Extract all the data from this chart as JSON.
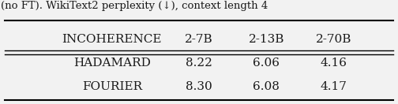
{
  "caption": "(no FT). WikiText2 perplexity (↓), context length 4",
  "col_headers": [
    "INCOHERENCE",
    "2-7B",
    "2-13B",
    "2-70B"
  ],
  "rows": [
    [
      "HADAMARD",
      "8.22",
      "6.06",
      "4.16"
    ],
    [
      "FOURIER",
      "8.30",
      "6.08",
      "4.17"
    ]
  ],
  "background_color": "#f2f2f2",
  "text_color": "#1a1a1a",
  "font_size": 11,
  "figsize": [
    5.04,
    1.32
  ],
  "dpi": 100
}
